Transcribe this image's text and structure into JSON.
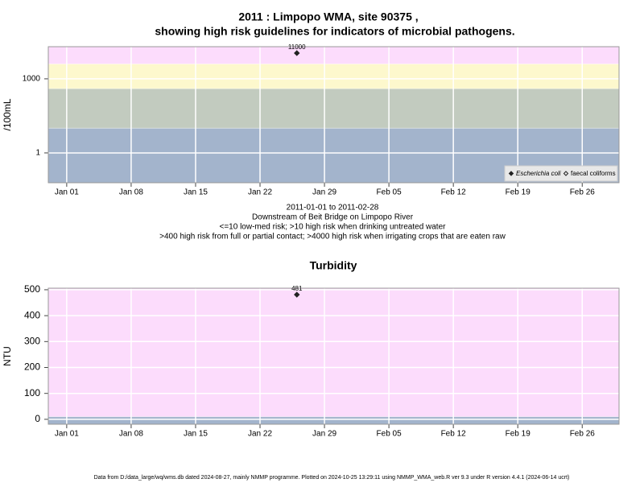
{
  "chart_data": [
    {
      "type": "scatter",
      "title": "2011 : Limpopo WMA, site 90375 ,",
      "subtitle": "showing high risk guidelines for indicators of microbial pathogens.",
      "ylabel": "/100mL",
      "log_y": true,
      "ylim": [
        0.062,
        20000
      ],
      "yticks": [
        1,
        1000
      ],
      "xlim": [
        "2010-12-30",
        "2011-03-02"
      ],
      "xticks": [
        {
          "value": "2011-01-01",
          "label": "Jan 01"
        },
        {
          "value": "2011-01-08",
          "label": "Jan 08"
        },
        {
          "value": "2011-01-15",
          "label": "Jan 15"
        },
        {
          "value": "2011-01-22",
          "label": "Jan 22"
        },
        {
          "value": "2011-01-29",
          "label": "Jan 29"
        },
        {
          "value": "2011-02-05",
          "label": "Feb 05"
        },
        {
          "value": "2011-02-12",
          "label": "Feb 12"
        },
        {
          "value": "2011-02-19",
          "label": "Feb 19"
        },
        {
          "value": "2011-02-26",
          "label": "Feb 26"
        }
      ],
      "grid": true,
      "band_edges": [
        10,
        400,
        4000
      ],
      "band_colors": [
        "#a3b4cc",
        "#c2cbbf",
        "#fdf8cd",
        "#fcdcfc"
      ],
      "legend": "bottom-right",
      "series": [
        {
          "name": "Escherichia coli",
          "color": "#222222",
          "filled": true,
          "x": [
            "2011-01-26"
          ],
          "values": [
            11000
          ]
        },
        {
          "name": "faecal coliforms",
          "color": "#222222",
          "filled": false,
          "x": [],
          "values": []
        }
      ],
      "notes": [
        "2011-01-01 to 2011-02-28",
        "Downstream of Beit Bridge on Limpopo River",
        "<=10 low-med risk; >10 high risk when drinking untreated water",
        ">400 high risk from full or partial contact; >4000 high risk when irrigating crops that are eaten raw"
      ]
    },
    {
      "type": "scatter",
      "title": "Turbidity",
      "ylabel": "NTU",
      "log_y": false,
      "ylim": [
        -19,
        506
      ],
      "yticks": [
        0,
        100,
        200,
        300,
        400,
        500
      ],
      "xlim": [
        "2010-12-30",
        "2011-03-02"
      ],
      "xticks": [
        {
          "value": "2011-01-01",
          "label": "Jan 01"
        },
        {
          "value": "2011-01-08",
          "label": "Jan 08"
        },
        {
          "value": "2011-01-15",
          "label": "Jan 15"
        },
        {
          "value": "2011-01-22",
          "label": "Jan 22"
        },
        {
          "value": "2011-01-29",
          "label": "Jan 29"
        },
        {
          "value": "2011-02-05",
          "label": "Feb 05"
        },
        {
          "value": "2011-02-12",
          "label": "Feb 12"
        },
        {
          "value": "2011-02-19",
          "label": "Feb 19"
        },
        {
          "value": "2011-02-26",
          "label": "Feb 26"
        }
      ],
      "grid": true,
      "band_edges": [
        10
      ],
      "band_colors": [
        "#a3b4cc",
        "#fcdcfc"
      ],
      "series": [
        {
          "color": "#222222",
          "filled": true,
          "x": [
            "2011-01-26"
          ],
          "values": [
            481
          ]
        }
      ]
    }
  ],
  "footer": "Data from D:/data_large/wq/wms.db dated 2024-08-27, mainly NMMP programme. Plotted on 2024-10-25 13:29:11 using NMMP_WMA_web.R ver 9.3 under R version 4.4.1 (2024-06-14 ucrt)"
}
